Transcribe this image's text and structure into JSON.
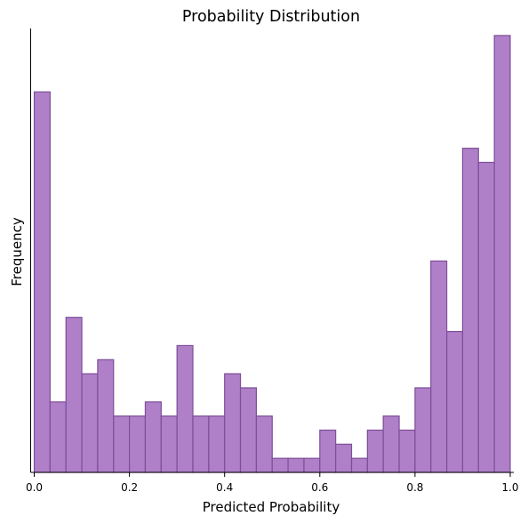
{
  "chart_data": {
    "type": "histogram",
    "title": "Probability Distribution",
    "xlabel": "Predicted Probability",
    "ylabel": "Frequency",
    "xlim": [
      -0.0075,
      1.0075
    ],
    "ylim": [
      0,
      31.5
    ],
    "bin_edges": [
      0.0,
      0.0333,
      0.0667,
      0.1,
      0.1333,
      0.1667,
      0.2,
      0.2333,
      0.2667,
      0.3,
      0.3333,
      0.3667,
      0.4,
      0.4333,
      0.4667,
      0.5,
      0.5333,
      0.5667,
      0.6,
      0.6333,
      0.6667,
      0.7,
      0.7333,
      0.7667,
      0.8,
      0.8333,
      0.8667,
      0.9,
      0.9333,
      0.9667,
      1.0
    ],
    "values": [
      27,
      5,
      11,
      7,
      8,
      4,
      4,
      5,
      4,
      9,
      4,
      4,
      7,
      6,
      4,
      1,
      1,
      1,
      3,
      2,
      1,
      3,
      4,
      3,
      6,
      15,
      10,
      23,
      22,
      31
    ],
    "xticks": [
      0.0,
      0.2,
      0.4,
      0.6,
      0.8,
      1.0
    ],
    "xtick_labels": [
      "0.0",
      "0.2",
      "0.4",
      "0.6",
      "0.8",
      "1.0"
    ],
    "show_yticks": false,
    "grid": false,
    "legend": false,
    "colors": {
      "bar_fill": "#af7fc8",
      "bar_edge": "#7d4f99",
      "axis": "#000000"
    }
  }
}
